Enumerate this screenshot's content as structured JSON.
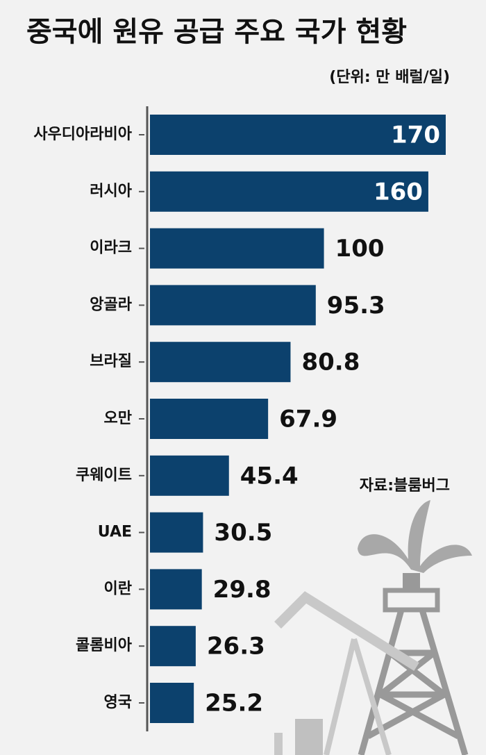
{
  "chart_data": {
    "type": "bar",
    "orientation": "horizontal",
    "title": "중국에 원유 공급 주요 국가 현황",
    "subtitle": "(단위: 만 배럴/일)",
    "source": "자료:블룸버그",
    "categories": [
      "사우디아라비아",
      "러시아",
      "이라크",
      "앙골라",
      "브라질",
      "오만",
      "쿠웨이트",
      "UAE",
      "이란",
      "콜롬비아",
      "영국"
    ],
    "values": [
      170,
      160,
      100,
      95.3,
      80.8,
      67.9,
      45.4,
      30.5,
      29.8,
      26.3,
      25.2
    ],
    "value_labels": [
      "170",
      "160",
      "100",
      "95.3",
      "80.8",
      "67.9",
      "45.4",
      "30.5",
      "29.8",
      "26.3",
      "25.2"
    ],
    "color": "#0c416d"
  }
}
